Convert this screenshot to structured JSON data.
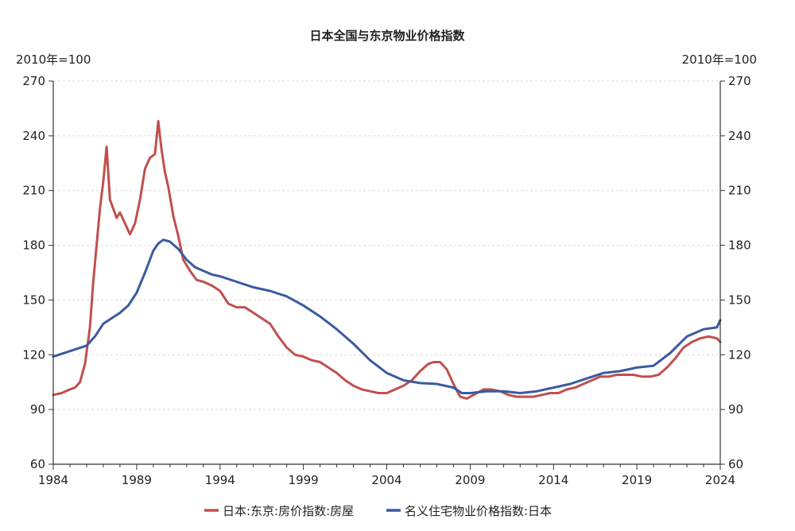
{
  "chart_data": {
    "type": "line",
    "title": "日本全国与东京物业价格指数",
    "left_unit": "2010年=100",
    "right_unit": "2010年=100",
    "xlim": [
      1984,
      2024
    ],
    "ylim": [
      60,
      270
    ],
    "x_ticks": [
      1984,
      1989,
      1994,
      1999,
      2004,
      2009,
      2014,
      2019,
      2024
    ],
    "x_tick_labels": [
      "1984",
      "1989",
      "1994",
      "1999",
      "2004",
      "2009",
      "2014",
      "2019",
      "2024"
    ],
    "y_ticks": [
      60,
      90,
      120,
      150,
      180,
      210,
      240,
      270
    ],
    "y_tick_labels": [
      "60",
      "90",
      "120",
      "150",
      "180",
      "210",
      "240",
      "270"
    ],
    "grid": true,
    "legend_position": "bottom",
    "series": [
      {
        "name": "日本:东京:房价指数:房屋",
        "color": "#c0504d",
        "points": [
          [
            1984.0,
            98
          ],
          [
            1984.5,
            99
          ],
          [
            1985.0,
            101
          ],
          [
            1985.3,
            102
          ],
          [
            1985.6,
            105
          ],
          [
            1985.9,
            115
          ],
          [
            1986.2,
            135
          ],
          [
            1986.4,
            160
          ],
          [
            1986.6,
            180
          ],
          [
            1986.8,
            200
          ],
          [
            1987.0,
            215
          ],
          [
            1987.2,
            234
          ],
          [
            1987.4,
            205
          ],
          [
            1987.6,
            200
          ],
          [
            1987.8,
            195
          ],
          [
            1988.0,
            198
          ],
          [
            1988.3,
            192
          ],
          [
            1988.6,
            186
          ],
          [
            1988.9,
            192
          ],
          [
            1989.2,
            205
          ],
          [
            1989.5,
            222
          ],
          [
            1989.8,
            228
          ],
          [
            1990.1,
            230
          ],
          [
            1990.3,
            248
          ],
          [
            1990.5,
            232
          ],
          [
            1990.7,
            220
          ],
          [
            1990.9,
            212
          ],
          [
            1991.2,
            196
          ],
          [
            1991.5,
            185
          ],
          [
            1991.8,
            172
          ],
          [
            1992.2,
            166
          ],
          [
            1992.6,
            161
          ],
          [
            1993.0,
            160
          ],
          [
            1993.5,
            158
          ],
          [
            1994.0,
            155
          ],
          [
            1994.5,
            148
          ],
          [
            1995.0,
            146
          ],
          [
            1995.5,
            146
          ],
          [
            1996.0,
            143
          ],
          [
            1996.5,
            140
          ],
          [
            1997.0,
            137
          ],
          [
            1997.5,
            130
          ],
          [
            1998.0,
            124
          ],
          [
            1998.5,
            120
          ],
          [
            1999.0,
            119
          ],
          [
            1999.5,
            117
          ],
          [
            2000.0,
            116
          ],
          [
            2000.5,
            113
          ],
          [
            2001.0,
            110
          ],
          [
            2001.5,
            106
          ],
          [
            2002.0,
            103
          ],
          [
            2002.5,
            101
          ],
          [
            2003.0,
            100
          ],
          [
            2003.5,
            99
          ],
          [
            2004.0,
            99
          ],
          [
            2004.5,
            101
          ],
          [
            2005.0,
            103
          ],
          [
            2005.5,
            106
          ],
          [
            2006.0,
            111
          ],
          [
            2006.5,
            115
          ],
          [
            2006.8,
            116
          ],
          [
            2007.2,
            116
          ],
          [
            2007.6,
            112
          ],
          [
            2008.0,
            104
          ],
          [
            2008.4,
            97
          ],
          [
            2008.8,
            96
          ],
          [
            2009.2,
            98
          ],
          [
            2009.8,
            101
          ],
          [
            2010.2,
            101
          ],
          [
            2010.8,
            100
          ],
          [
            2011.3,
            98
          ],
          [
            2011.8,
            97
          ],
          [
            2012.3,
            97
          ],
          [
            2012.8,
            97
          ],
          [
            2013.3,
            98
          ],
          [
            2013.8,
            99
          ],
          [
            2014.3,
            99
          ],
          [
            2014.8,
            101
          ],
          [
            2015.3,
            102
          ],
          [
            2015.8,
            104
          ],
          [
            2016.3,
            106
          ],
          [
            2016.8,
            108
          ],
          [
            2017.3,
            108
          ],
          [
            2017.8,
            109
          ],
          [
            2018.3,
            109
          ],
          [
            2018.8,
            109
          ],
          [
            2019.3,
            108
          ],
          [
            2019.8,
            108
          ],
          [
            2020.3,
            109
          ],
          [
            2020.8,
            113
          ],
          [
            2021.3,
            118
          ],
          [
            2021.8,
            124
          ],
          [
            2022.3,
            127
          ],
          [
            2022.8,
            129
          ],
          [
            2023.3,
            130
          ],
          [
            2023.8,
            129
          ],
          [
            2024.0,
            127
          ]
        ]
      },
      {
        "name": "名义住宅物业价格指数:日本",
        "color": "#3a5ba0",
        "points": [
          [
            1984.0,
            119
          ],
          [
            1985.0,
            122
          ],
          [
            1986.0,
            125
          ],
          [
            1986.5,
            130
          ],
          [
            1987.0,
            137
          ],
          [
            1987.5,
            140
          ],
          [
            1988.0,
            143
          ],
          [
            1988.5,
            147
          ],
          [
            1989.0,
            154
          ],
          [
            1989.5,
            165
          ],
          [
            1990.0,
            177
          ],
          [
            1990.3,
            181
          ],
          [
            1990.6,
            183
          ],
          [
            1991.0,
            182
          ],
          [
            1991.5,
            178
          ],
          [
            1992.0,
            172
          ],
          [
            1992.5,
            168
          ],
          [
            1993.0,
            166
          ],
          [
            1993.5,
            164
          ],
          [
            1994.0,
            163
          ],
          [
            1995.0,
            160
          ],
          [
            1996.0,
            157
          ],
          [
            1997.0,
            155
          ],
          [
            1998.0,
            152
          ],
          [
            1999.0,
            147
          ],
          [
            2000.0,
            141
          ],
          [
            2001.0,
            134
          ],
          [
            2002.0,
            126
          ],
          [
            2003.0,
            117
          ],
          [
            2004.0,
            110
          ],
          [
            2005.0,
            106
          ],
          [
            2006.0,
            104.5
          ],
          [
            2007.0,
            104
          ],
          [
            2008.0,
            102
          ],
          [
            2008.5,
            99
          ],
          [
            2009.0,
            99
          ],
          [
            2010.0,
            100
          ],
          [
            2011.0,
            100
          ],
          [
            2012.0,
            99
          ],
          [
            2013.0,
            100
          ],
          [
            2014.0,
            102
          ],
          [
            2015.0,
            104
          ],
          [
            2016.0,
            107
          ],
          [
            2017.0,
            110
          ],
          [
            2018.0,
            111
          ],
          [
            2019.0,
            113
          ],
          [
            2020.0,
            114
          ],
          [
            2021.0,
            121
          ],
          [
            2022.0,
            130
          ],
          [
            2023.0,
            134
          ],
          [
            2023.8,
            135
          ],
          [
            2024.0,
            139
          ]
        ]
      }
    ]
  }
}
